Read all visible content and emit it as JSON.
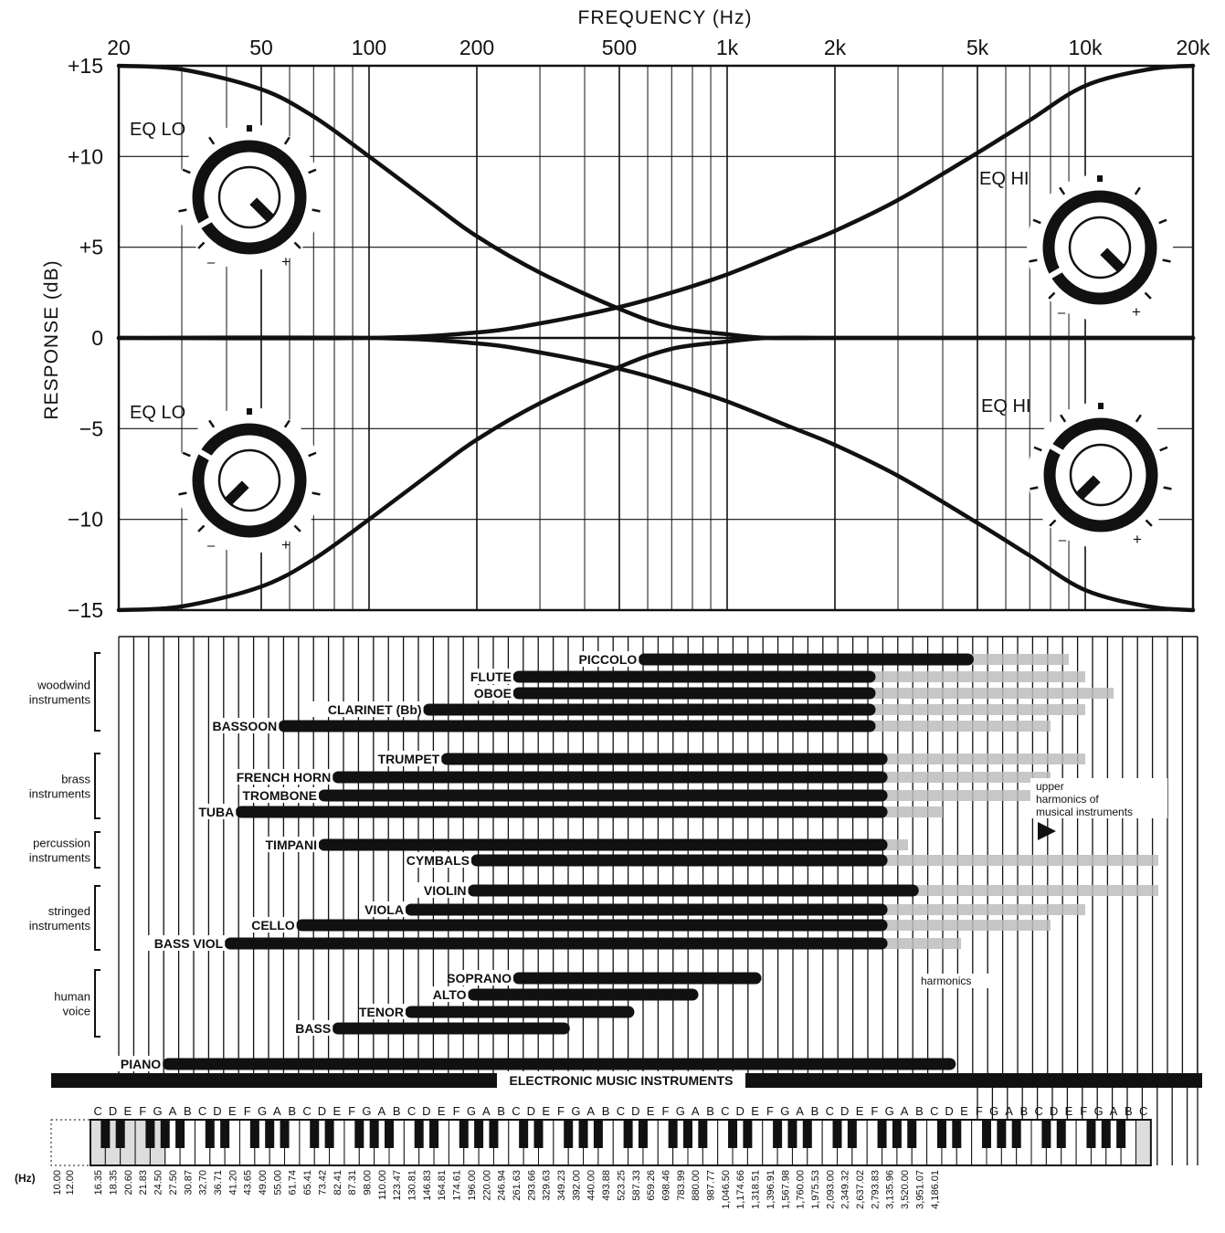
{
  "chart_data": [
    {
      "type": "line",
      "title": "FREQUENCY (Hz)",
      "ylabel": "RESPONSE (dB)",
      "x_scale": "log",
      "xlim": [
        20,
        20000
      ],
      "ylim": [
        -15,
        15
      ],
      "x_tick_labels": [
        {
          "value": 20,
          "label": "20"
        },
        {
          "value": 50,
          "label": "50"
        },
        {
          "value": 100,
          "label": "100"
        },
        {
          "value": 200,
          "label": "200"
        },
        {
          "value": 500,
          "label": "500"
        },
        {
          "value": 1000,
          "label": "1k"
        },
        {
          "value": 2000,
          "label": "2k"
        },
        {
          "value": 5000,
          "label": "5k"
        },
        {
          "value": 10000,
          "label": "10k"
        },
        {
          "value": 20000,
          "label": "20k"
        }
      ],
      "y_tick_labels": [
        {
          "value": 15,
          "label": "+15"
        },
        {
          "value": 10,
          "label": "+10"
        },
        {
          "value": 5,
          "label": "+5"
        },
        {
          "value": 0,
          "label": "0"
        },
        {
          "value": -5,
          "label": "−5"
        },
        {
          "value": -10,
          "label": "−10"
        },
        {
          "value": -15,
          "label": "−15"
        }
      ],
      "grid": true,
      "series": [
        {
          "x": [
            20,
            30,
            50,
            70,
            100,
            150,
            200,
            300,
            500,
            700,
            1000,
            1300,
            2000,
            5000,
            20000
          ],
          "y": [
            15,
            14.8,
            13.7,
            12.2,
            10,
            7.4,
            5.6,
            3.6,
            1.6,
            0.6,
            0.2,
            0,
            0,
            0,
            0
          ]
        },
        {
          "x": [
            20,
            30,
            50,
            70,
            100,
            150,
            200,
            300,
            500,
            700,
            1000,
            1300,
            2000,
            5000,
            20000
          ],
          "y": [
            -15,
            -14.8,
            -13.7,
            -12.2,
            -10,
            -7.4,
            -5.6,
            -3.6,
            -1.6,
            -0.6,
            -0.2,
            0,
            0,
            0,
            0
          ]
        },
        {
          "x": [
            20,
            100,
            200,
            300,
            500,
            700,
            1000,
            1500,
            2000,
            3000,
            5000,
            7000,
            10000,
            15000,
            20000
          ],
          "y": [
            0,
            0,
            0.3,
            0.8,
            1.7,
            2.5,
            3.5,
            4.9,
            5.9,
            7.6,
            10.2,
            12,
            13.9,
            14.8,
            15
          ]
        },
        {
          "x": [
            20,
            100,
            200,
            300,
            500,
            700,
            1000,
            1500,
            2000,
            3000,
            5000,
            7000,
            10000,
            15000,
            20000
          ],
          "y": [
            0,
            0,
            -0.3,
            -0.8,
            -1.7,
            -2.5,
            -3.5,
            -4.9,
            -5.9,
            -7.6,
            -10.2,
            -12,
            -13.9,
            -14.8,
            -15
          ]
        }
      ],
      "knobs": [
        {
          "label": "EQ LO",
          "setting": "+",
          "minus": "–",
          "plus": "+"
        },
        {
          "label": "EQ HI",
          "setting": "+",
          "minus": "–",
          "plus": "+"
        },
        {
          "label": "EQ LO",
          "setting": "–",
          "minus": "–",
          "plus": "+"
        },
        {
          "label": "EQ HI",
          "setting": "–",
          "minus": "–",
          "plus": "+"
        }
      ]
    },
    {
      "type": "bar",
      "x_scale": "log",
      "orientation": "horizontal-range",
      "groups": [
        {
          "name": "woodwind instruments",
          "lines": [
            "woodwind",
            "instruments"
          ]
        },
        {
          "name": "brass instruments",
          "lines": [
            "brass",
            "instruments"
          ]
        },
        {
          "name": "percussion instruments",
          "lines": [
            "percussion",
            "instruments"
          ]
        },
        {
          "name": "stringed instruments",
          "lines": [
            "stringed",
            "instruments"
          ]
        },
        {
          "name": "human voice",
          "lines": [
            "human",
            "voice"
          ]
        }
      ],
      "instruments": [
        {
          "label": "PICCOLO",
          "group": 0,
          "low": 587,
          "high": 4700,
          "harm": 9000
        },
        {
          "label": "FLUTE",
          "group": 0,
          "low": 262,
          "high": 2500,
          "harm": 10000
        },
        {
          "label": "OBOE",
          "group": 0,
          "low": 262,
          "high": 2500,
          "harm": 12000
        },
        {
          "label": "CLARINET (Bb)",
          "group": 0,
          "low": 147,
          "high": 2500,
          "harm": 10000
        },
        {
          "label": "BASSOON",
          "group": 0,
          "low": 58,
          "high": 2500,
          "harm": 8000
        },
        {
          "label": "TRUMPET",
          "group": 1,
          "low": 165,
          "high": 2700,
          "harm": 10000
        },
        {
          "label": "FRENCH HORN",
          "group": 1,
          "low": 82,
          "high": 2700,
          "harm": 8000
        },
        {
          "label": "TROMBONE",
          "group": 1,
          "low": 75,
          "high": 2700,
          "harm": 8000
        },
        {
          "label": "TUBA",
          "group": 1,
          "low": 44,
          "high": 2700,
          "harm": 4000
        },
        {
          "label": "TIMPANI",
          "group": 2,
          "low": 75,
          "high": 2700,
          "harm": 3200
        },
        {
          "label": "CYMBALS",
          "group": 2,
          "low": 200,
          "high": 2700,
          "harm": 16000
        },
        {
          "label": "VIOLIN",
          "group": 3,
          "low": 196,
          "high": 3300,
          "harm": 16000
        },
        {
          "label": "VIOLA",
          "group": 3,
          "low": 131,
          "high": 2700,
          "harm": 10000
        },
        {
          "label": "CELLO",
          "group": 3,
          "low": 65,
          "high": 2700,
          "harm": 8000
        },
        {
          "label": "BASS VIOL",
          "group": 3,
          "low": 41,
          "high": 2700,
          "harm": 4500
        },
        {
          "label": "SOPRANO",
          "group": 4,
          "low": 262,
          "high": 1200,
          "harm": null
        },
        {
          "label": "ALTO",
          "group": 4,
          "low": 196,
          "high": 800,
          "harm": null
        },
        {
          "label": "TENOR",
          "group": 4,
          "low": 131,
          "high": 530,
          "harm": null
        },
        {
          "label": "BASS",
          "group": 4,
          "low": 82,
          "high": 350,
          "harm": null
        },
        {
          "label": "PIANO",
          "group": null,
          "low": 27.5,
          "high": 4186,
          "harm": null
        },
        {
          "label": "ELECTRONIC MUSIC INSTRUMENTS",
          "group": null,
          "low": 10,
          "high": 20000,
          "harm": null
        }
      ],
      "annotations": {
        "upper_harmonics": [
          "upper",
          "harmonics of",
          "musical instruments"
        ],
        "harmonics": "harmonics"
      },
      "keyboard": {
        "note_names": "CDEFGABCDEFGABCDEFGABCDEFGABCDEFGABCDEFGABCDEFGABCDEFGABCDEFGABCDEFGABC",
        "hz_unit": "(Hz)",
        "extra_hz": [
          "10.00",
          "12.00"
        ],
        "frequencies": [
          "16.35",
          "18.35",
          "20.60",
          "21.83",
          "24.50",
          "27.50",
          "30.87",
          "32.70",
          "36.71",
          "41.20",
          "43.65",
          "49.00",
          "55.00",
          "61.74",
          "65.41",
          "73.42",
          "82.41",
          "87.31",
          "98.00",
          "110.00",
          "123.47",
          "130.81",
          "146.83",
          "164.81",
          "174.61",
          "196.00",
          "220.00",
          "246.94",
          "261.63",
          "293.66",
          "329.63",
          "349.23",
          "392.00",
          "440.00",
          "493.88",
          "523.25",
          "587.33",
          "659.26",
          "698.46",
          "783.99",
          "880.00",
          "987.77",
          "1,046.50",
          "1,174.66",
          "1,318.51",
          "1,396.91",
          "1,567.98",
          "1,760.00",
          "1,975.53",
          "2,093.00",
          "2,349.32",
          "2,637.02",
          "2,793.83",
          "3,135.96",
          "3,520.00",
          "3,951.07",
          "4,186.01"
        ]
      }
    }
  ]
}
